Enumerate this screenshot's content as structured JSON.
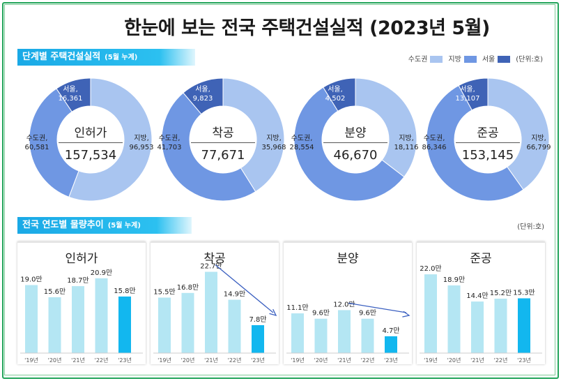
{
  "title": "한눈에 보는 전국 주택건설실적  (2023년 5월)",
  "section1": {
    "label": "단계별 주택건설실적",
    "sub": "(5월 누계)"
  },
  "section2": {
    "label": "전국 연도별 물량추이",
    "sub": "(5월 누계)"
  },
  "legend": {
    "items": [
      {
        "name": "수도권",
        "color": "#a9c5f0"
      },
      {
        "name": "지방",
        "color": "#6f97e3"
      },
      {
        "name": "서울",
        "color": "#3f63b6"
      }
    ],
    "unit": "(단위:호)"
  },
  "unit2": "(단위:호)",
  "chart_data": [
    {
      "type": "pie",
      "title": "인허가",
      "total": "157,534",
      "slices": [
        {
          "name": "수도권",
          "display": "수도권,\n60,581",
          "value": 60581
        },
        {
          "name": "지방",
          "display": "지방,\n96,953",
          "value": 96953
        },
        {
          "name": "서울",
          "display": "서울,\n16,361",
          "value": 16361
        }
      ]
    },
    {
      "type": "pie",
      "title": "착공",
      "total": "77,671",
      "slices": [
        {
          "name": "수도권",
          "display": "수도권,\n41,703",
          "value": 41703
        },
        {
          "name": "지방",
          "display": "지방,\n35,968",
          "value": 35968
        },
        {
          "name": "서울",
          "display": "서울,\n9,823",
          "value": 9823
        }
      ]
    },
    {
      "type": "pie",
      "title": "분양",
      "total": "46,670",
      "slices": [
        {
          "name": "수도권",
          "display": "수도권,\n28,554",
          "value": 28554
        },
        {
          "name": "지방",
          "display": "지방,\n18,116",
          "value": 18116
        },
        {
          "name": "서울",
          "display": "서울,\n4,502",
          "value": 4502
        }
      ]
    },
    {
      "type": "pie",
      "title": "준공",
      "total": "153,145",
      "slices": [
        {
          "name": "수도권",
          "display": "수도권,\n86,346",
          "value": 86346
        },
        {
          "name": "지방",
          "display": "지방,\n66,799",
          "value": 66799
        },
        {
          "name": "서울",
          "display": "서울,\n13,107",
          "value": 13107
        }
      ]
    },
    {
      "type": "bar",
      "title": "인허가",
      "categories": [
        "'19년",
        "'20년",
        "'21년",
        "'22년",
        "'23년"
      ],
      "values": [
        19.0,
        15.6,
        18.7,
        20.9,
        15.8
      ],
      "labels": [
        "19.0만",
        "15.6만",
        "18.7만",
        "20.9만",
        "15.8만"
      ],
      "arrow": false
    },
    {
      "type": "bar",
      "title": "착공",
      "categories": [
        "'19년",
        "'20년",
        "'21년",
        "'22년",
        "'23년"
      ],
      "values": [
        15.5,
        16.8,
        22.7,
        14.9,
        7.8
      ],
      "labels": [
        "15.5만",
        "16.8만",
        "22.7만",
        "14.9만",
        "7.8만"
      ],
      "arrow": true
    },
    {
      "type": "bar",
      "title": "분양",
      "categories": [
        "'19년",
        "'20년",
        "'21년",
        "'22년",
        "'23년"
      ],
      "values": [
        11.1,
        9.6,
        12.0,
        9.6,
        4.7
      ],
      "labels": [
        "11.1만",
        "9.6만",
        "12.0만",
        "9.6만",
        "4.7만"
      ],
      "arrow": true
    },
    {
      "type": "bar",
      "title": "준공",
      "categories": [
        "'19년",
        "'20년",
        "'21년",
        "'22년",
        "'23년"
      ],
      "values": [
        22.0,
        18.9,
        14.4,
        15.2,
        15.3
      ],
      "labels": [
        "22.0만",
        "18.9만",
        "14.4만",
        "15.2만",
        "15.3만"
      ],
      "arrow": false
    }
  ]
}
